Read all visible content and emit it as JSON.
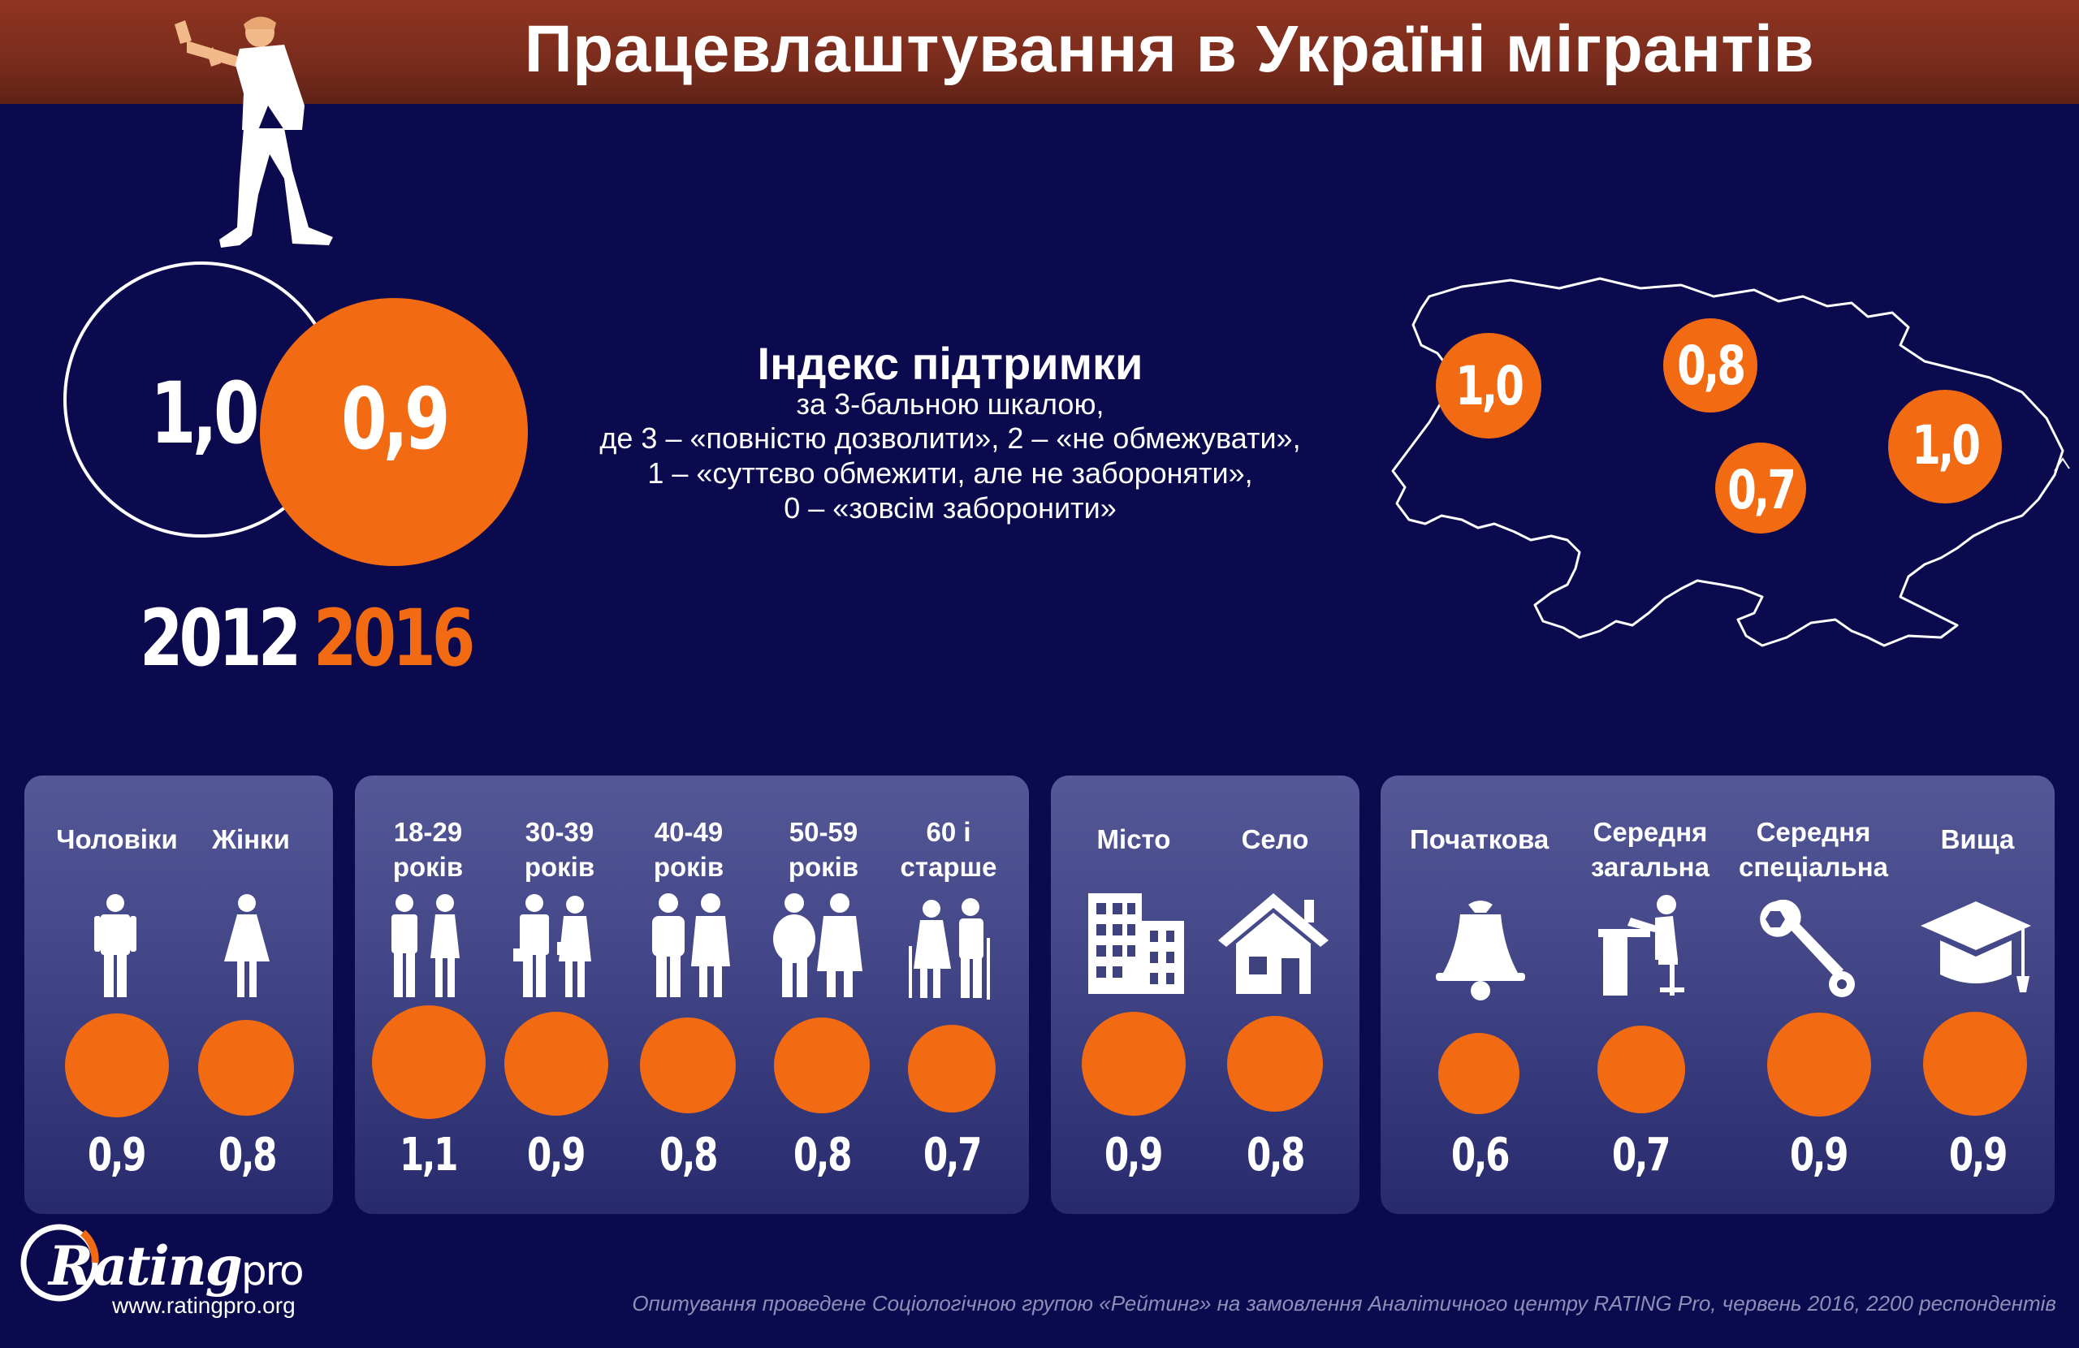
{
  "title": "Працевлаштування в Україні мігрантів",
  "colors": {
    "background": "#0c0a4e",
    "accent": "#f26a12",
    "header": "#8f3420"
  },
  "index": {
    "title": "Індекс підтримки",
    "lines": [
      "за 3-бальною шкалою,",
      "де 3 – «повністю дозволити», 2 – «не обмежувати»,",
      "1 – «суттєво обмежити, але не забороняти»,",
      "0 – «зовсім заборонити»"
    ]
  },
  "totals": [
    {
      "year": "2012",
      "value": "1,0"
    },
    {
      "year": "2016",
      "value": "0,9"
    }
  ],
  "regions": [
    "1,0",
    "0,8",
    "0,7",
    "1,0"
  ],
  "groups": {
    "gender": [
      {
        "label": "Чоловіки",
        "value": "0,9",
        "icon": "man-icon"
      },
      {
        "label": "Жінки",
        "value": "0,8",
        "icon": "woman-icon"
      }
    ],
    "age": [
      {
        "label": "18-29 років",
        "value": "1,1",
        "icon": "young-couple-icon"
      },
      {
        "label": "30-39 років",
        "value": "0,9",
        "icon": "business-couple-icon"
      },
      {
        "label": "40-49 років",
        "value": "0,8",
        "icon": "middle-age-couple-icon"
      },
      {
        "label": "50-59 років",
        "value": "0,8",
        "icon": "older-couple-icon"
      },
      {
        "label": "60 і старше",
        "value": "0,7",
        "icon": "elderly-couple-icon"
      }
    ],
    "settlement": [
      {
        "label": "Місто",
        "value": "0,9",
        "icon": "city-buildings-icon"
      },
      {
        "label": "Село",
        "value": "0,8",
        "icon": "house-icon"
      }
    ],
    "education": [
      {
        "label": "Початкова",
        "value": "0,6",
        "icon": "school-bell-icon"
      },
      {
        "label": "Середня загальна",
        "value": "0,7",
        "icon": "student-desk-icon"
      },
      {
        "label": "Середня спеціальна",
        "value": "0,9",
        "icon": "wrench-icon"
      },
      {
        "label": "Вища",
        "value": "0,9",
        "icon": "graduation-cap-icon"
      }
    ]
  },
  "chart_data": [
    {
      "type": "bar",
      "categories": [
        "2012",
        "2016"
      ],
      "values": [
        1.0,
        0.9
      ],
      "title": "Індекс підтримки"
    },
    {
      "type": "bar",
      "categories": [
        "Чоловіки",
        "Жінки",
        "18-29 років",
        "30-39 років",
        "40-49 років",
        "50-59 років",
        "60 і старше",
        "Місто",
        "Село",
        "Початкова",
        "Середня загальна",
        "Середня спеціальна",
        "Вища"
      ],
      "values": [
        0.9,
        0.8,
        1.1,
        0.9,
        0.8,
        0.8,
        0.7,
        0.9,
        0.8,
        0.6,
        0.7,
        0.9,
        0.9
      ]
    },
    {
      "type": "bar",
      "categories": [
        "",
        "",
        "",
        ""
      ],
      "values": [
        1.0,
        0.8,
        0.7,
        1.0
      ]
    }
  ],
  "logo": {
    "brand": "Rating",
    "suffix": "pro",
    "url": "www.ratingpro.org"
  },
  "footnote": "Опитування проведене Соціологічною групою «Рейтинг» на замовлення Аналітичного центру RATING Pro, червень 2016, 2200 респондентів"
}
